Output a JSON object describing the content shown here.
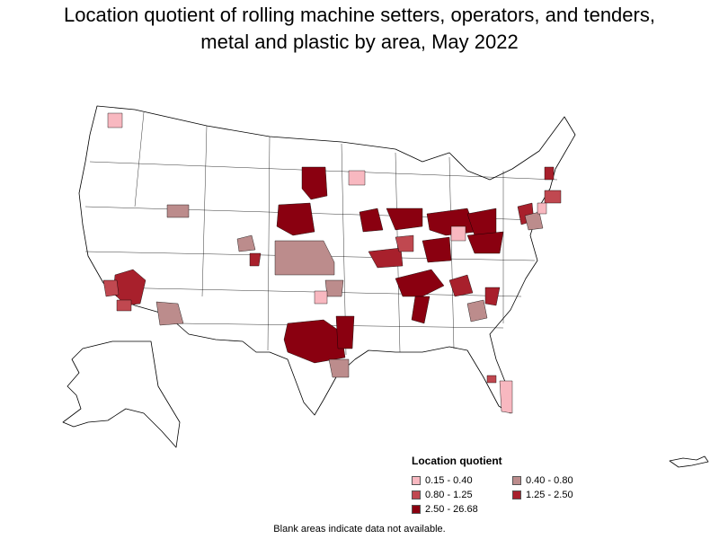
{
  "title_line1": "Location quotient of rolling machine setters, operators, and tenders,",
  "title_line2": "metal and plastic by area, May 2022",
  "legend": {
    "title": "Location quotient",
    "items": [
      {
        "label": "0.15 - 0.40",
        "color": "#f8b8c0"
      },
      {
        "label": "0.40 - 0.80",
        "color": "#bc8c8c"
      },
      {
        "label": "0.80 - 1.25",
        "color": "#c04850"
      },
      {
        "label": "1.25 - 2.50",
        "color": "#a8202c"
      },
      {
        "label": "2.50 - 26.68",
        "color": "#8a0010"
      }
    ]
  },
  "footnote": "Blank areas indicate data not available."
}
